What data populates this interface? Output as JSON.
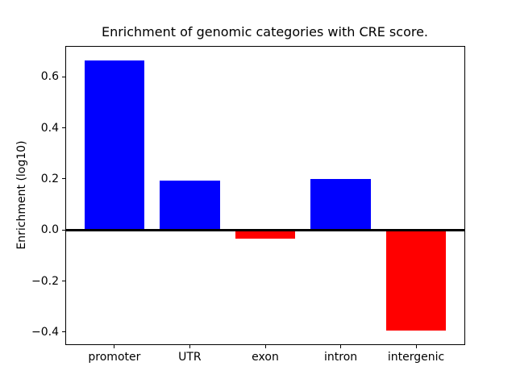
{
  "figure": {
    "background_color": "#ffffff",
    "axes_color": "#000000"
  },
  "chart_data": {
    "type": "bar",
    "title": "Enrichment of genomic categories with CRE score.",
    "xlabel": "",
    "ylabel": "Enrichment (log10)",
    "categories": [
      "promoter",
      "UTR",
      "exon",
      "intron",
      "intergenic"
    ],
    "values": [
      0.665,
      0.195,
      -0.035,
      0.2,
      -0.395
    ],
    "bar_colors": [
      "#0000ff",
      "#0000ff",
      "#ff0000",
      "#0000ff",
      "#ff0000"
    ],
    "positive_color": "#0000ff",
    "negative_color": "#ff0000",
    "bar_width": 0.8,
    "ylim": [
      -0.448,
      0.718
    ],
    "xlim": [
      -0.64,
      4.64
    ],
    "yticks": [
      {
        "value": 0.6,
        "label": "0.6"
      },
      {
        "value": 0.4,
        "label": "0.4"
      },
      {
        "value": 0.2,
        "label": "0.2"
      },
      {
        "value": 0.0,
        "label": "0.0"
      },
      {
        "value": -0.2,
        "label": "−0.2"
      },
      {
        "value": -0.4,
        "label": "−0.4"
      }
    ],
    "grid": false,
    "legend": null,
    "zero_line": true,
    "spines": "box"
  }
}
